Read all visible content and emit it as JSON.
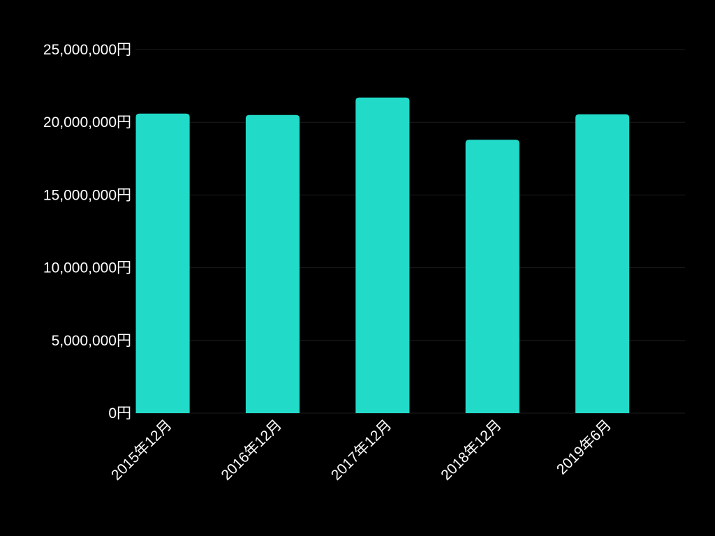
{
  "chart_data": {
    "type": "bar",
    "categories": [
      "2015年12月",
      "2016年12月",
      "2017年12月",
      "2018年12月",
      "2019年6月"
    ],
    "values": [
      20600000,
      20500000,
      21700000,
      18800000,
      20550000
    ],
    "ylim": [
      0,
      25000000
    ],
    "yticks": [
      0,
      5000000,
      10000000,
      15000000,
      20000000,
      25000000
    ],
    "ytick_labels": [
      "0円",
      "5,000,000円",
      "10,000,000円",
      "15,000,000円",
      "20,000,000円",
      "25,000,000円"
    ],
    "grid": true,
    "legend": "none",
    "colors": {
      "bar": "#21dac8",
      "background": "#000000",
      "text": "#ffffff",
      "grid": "#1c1c1c"
    }
  }
}
